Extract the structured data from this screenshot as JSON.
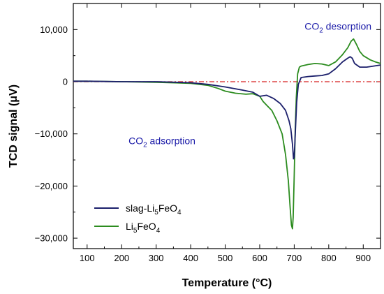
{
  "chart_data": {
    "type": "line",
    "xlabel": "Temperature (°C)",
    "ylabel": "TCD signal (μV)",
    "xlim": [
      60,
      950
    ],
    "ylim": [
      -32000,
      15000
    ],
    "x_ticks": [
      100,
      200,
      300,
      400,
      500,
      600,
      700,
      800,
      900
    ],
    "y_ticks": [
      10000,
      0,
      -10000,
      -20000,
      -30000
    ],
    "y_tick_labels": [
      "10,000",
      "0",
      "−10,000",
      "−20,000",
      "−30,000"
    ],
    "legend": {
      "placement": "bottom-left"
    },
    "baseline": {
      "y": 0,
      "color": "#d62020",
      "style": "dash-dot"
    },
    "annotations": [
      {
        "text": "CO",
        "sub": "2",
        "rest": " desorption",
        "color": "#1a1aa8",
        "x": 730,
        "y": 10000
      },
      {
        "text": "CO",
        "sub": "2",
        "rest": " adsorption",
        "color": "#1a1aa8",
        "x": 220,
        "y": -12000
      }
    ],
    "series": [
      {
        "name": "slag-Li5FeO4",
        "label_parts": [
          "slag-Li",
          "5",
          "FeO",
          "4"
        ],
        "color": "#1b1f6b",
        "x": [
          60,
          100,
          200,
          300,
          400,
          450,
          500,
          550,
          580,
          600,
          620,
          640,
          660,
          675,
          685,
          690,
          695,
          698,
          700,
          703,
          707,
          712,
          720,
          740,
          760,
          780,
          800,
          820,
          840,
          855,
          862,
          868,
          875,
          890,
          910,
          930,
          950
        ],
        "y": [
          100,
          100,
          0,
          0,
          -200,
          -500,
          -1000,
          -1600,
          -2000,
          -2800,
          -2600,
          -3200,
          -4200,
          -5500,
          -7500,
          -9000,
          -12000,
          -14800,
          -14500,
          -10000,
          -4000,
          -500,
          800,
          1000,
          1100,
          1200,
          1500,
          2500,
          3800,
          4500,
          4800,
          4500,
          3500,
          2800,
          2800,
          3000,
          3200
        ]
      },
      {
        "name": "Li5FeO4",
        "label_parts": [
          "Li",
          "5",
          "FeO",
          "4"
        ],
        "color": "#2c8c1f",
        "x": [
          60,
          100,
          200,
          300,
          400,
          450,
          480,
          500,
          530,
          560,
          580,
          600,
          610,
          620,
          635,
          650,
          665,
          675,
          683,
          688,
          692,
          695,
          697,
          700,
          703,
          706,
          710,
          715,
          720,
          740,
          760,
          780,
          800,
          820,
          840,
          855,
          865,
          872,
          880,
          890,
          900,
          920,
          935,
          950
        ],
        "y": [
          100,
          100,
          0,
          -100,
          -300,
          -700,
          -1300,
          -1800,
          -2200,
          -2400,
          -2300,
          -2800,
          -3800,
          -4500,
          -5500,
          -7500,
          -10000,
          -14000,
          -19000,
          -24000,
          -27500,
          -28200,
          -26000,
          -18000,
          -9000,
          -3000,
          1500,
          2800,
          3000,
          3300,
          3500,
          3400,
          3100,
          3800,
          5200,
          6500,
          7800,
          8200,
          7200,
          5800,
          5000,
          4200,
          3800,
          3500
        ]
      }
    ]
  }
}
